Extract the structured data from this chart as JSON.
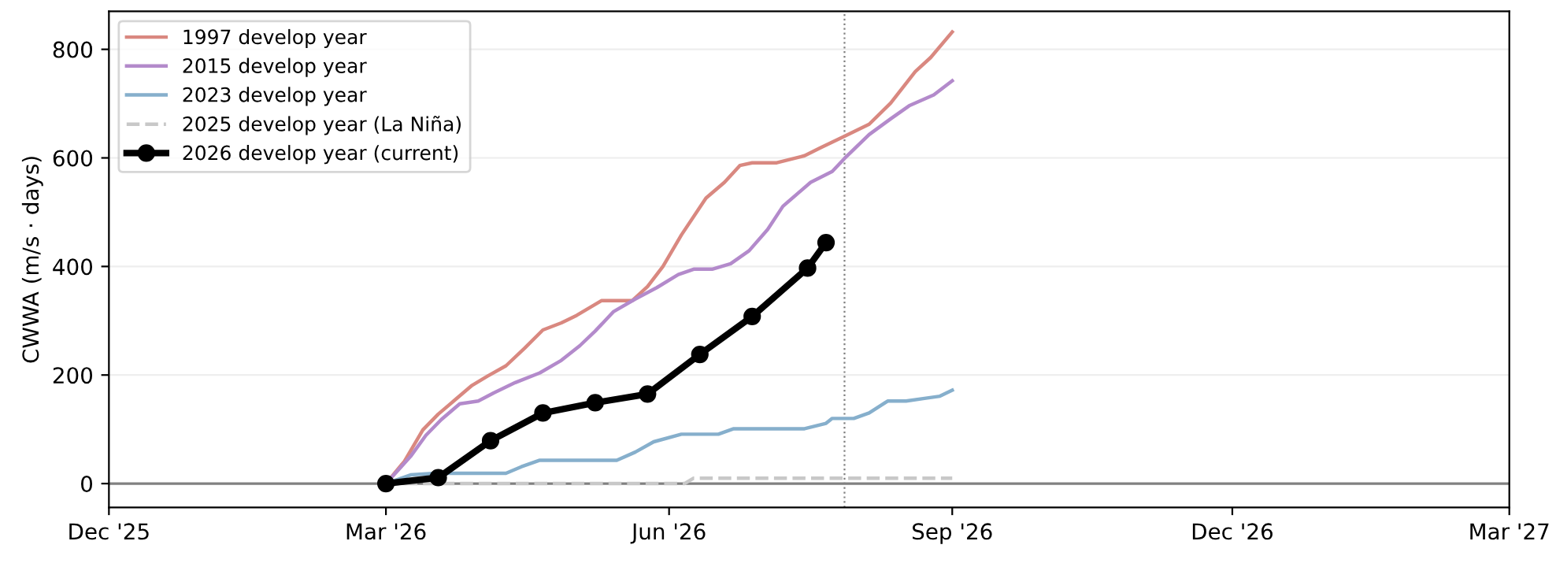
{
  "chart_data": {
    "type": "line",
    "ylabel": "CWWA (m/s · days)",
    "xlim": [
      "2025-12-01",
      "2027-03-01"
    ],
    "xticks": [
      {
        "value": "2025-12-01",
        "label": "Dec '25"
      },
      {
        "value": "2026-03-01",
        "label": "Mar '26"
      },
      {
        "value": "2026-06-01",
        "label": "Jun '26"
      },
      {
        "value": "2026-09-01",
        "label": "Sep '26"
      },
      {
        "value": "2026-12-01",
        "label": "Dec '26"
      },
      {
        "value": "2027-03-01",
        "label": "Mar '27"
      }
    ],
    "ylim": [
      -44,
      870
    ],
    "yticks": [
      0,
      200,
      400,
      600,
      800
    ],
    "grid": "y",
    "legend": "top left",
    "ref_lines": [
      {
        "axis": "y",
        "value": 0,
        "color": "#808080",
        "line_style": "solid"
      },
      {
        "axis": "x",
        "value": "2026-07-28",
        "color": "#808080",
        "line_style": "dotted"
      }
    ],
    "series": [
      {
        "name": "1997 develop year",
        "color": "#d98880",
        "x": [
          "2026-03-01",
          "2026-03-07",
          "2026-03-13",
          "2026-03-18",
          "2026-03-23",
          "2026-03-29",
          "2026-04-03",
          "2026-04-09",
          "2026-04-15",
          "2026-04-21",
          "2026-04-27",
          "2026-05-02",
          "2026-05-10",
          "2026-05-20",
          "2026-05-25",
          "2026-05-30",
          "2026-06-05",
          "2026-06-13",
          "2026-06-19",
          "2026-06-24",
          "2026-06-28",
          "2026-07-06",
          "2026-07-15",
          "2026-07-20",
          "2026-07-28",
          "2026-08-05",
          "2026-08-12",
          "2026-08-20",
          "2026-08-25",
          "2026-09-01"
        ],
        "values": [
          0,
          41,
          99,
          128,
          152,
          181,
          198,
          217,
          249,
          283,
          296,
          310,
          337,
          337,
          363,
          400,
          458,
          526,
          555,
          586,
          591,
          591,
          604,
          618,
          640,
          662,
          701,
          759,
          785,
          832
        ]
      },
      {
        "name": "2015 develop year",
        "color": "#b38acb",
        "x": [
          "2026-03-01",
          "2026-03-09",
          "2026-03-14",
          "2026-03-19",
          "2026-03-25",
          "2026-03-31",
          "2026-04-05",
          "2026-04-12",
          "2026-04-20",
          "2026-04-27",
          "2026-05-03",
          "2026-05-08",
          "2026-05-14",
          "2026-05-21",
          "2026-05-28",
          "2026-06-04",
          "2026-06-09",
          "2026-06-15",
          "2026-06-21",
          "2026-06-27",
          "2026-07-03",
          "2026-07-08",
          "2026-07-17",
          "2026-07-24",
          "2026-07-28",
          "2026-08-05",
          "2026-08-12",
          "2026-08-18",
          "2026-08-26",
          "2026-09-01"
        ],
        "values": [
          0,
          50,
          89,
          118,
          147,
          152,
          167,
          186,
          204,
          227,
          254,
          281,
          317,
          340,
          361,
          385,
          395,
          395,
          405,
          429,
          468,
          511,
          555,
          575,
          599,
          643,
          672,
          696,
          716,
          742
        ]
      },
      {
        "name": "2023 develop year",
        "color": "#86afcc",
        "x": [
          "2026-03-01",
          "2026-03-09",
          "2026-03-17",
          "2026-03-26",
          "2026-04-09",
          "2026-04-14",
          "2026-04-20",
          "2026-04-30",
          "2026-05-15",
          "2026-05-21",
          "2026-05-27",
          "2026-06-05",
          "2026-06-17",
          "2026-06-22",
          "2026-07-15",
          "2026-07-22",
          "2026-07-24",
          "2026-07-31",
          "2026-08-05",
          "2026-08-11",
          "2026-08-17",
          "2026-08-23",
          "2026-08-28",
          "2026-09-01"
        ],
        "values": [
          0,
          16,
          19,
          19,
          19,
          31,
          43,
          43,
          43,
          58,
          77,
          91,
          91,
          101,
          101,
          111,
          120,
          120,
          130,
          152,
          152,
          157,
          161,
          172
        ]
      },
      {
        "name": "2025 develop year (La Niña)",
        "color": "#c8c8c8",
        "line_style": "dashed",
        "x": [
          "2026-03-01",
          "2026-06-06",
          "2026-06-09",
          "2026-09-01"
        ],
        "values": [
          0,
          0,
          10,
          10
        ]
      },
      {
        "name": "2026 develop year (current)",
        "color": "#000000",
        "marker": "circle",
        "x": [
          "2026-03-01",
          "2026-03-18",
          "2026-04-04",
          "2026-04-21",
          "2026-05-08",
          "2026-05-25",
          "2026-06-11",
          "2026-06-28",
          "2026-07-16",
          "2026-07-22"
        ],
        "values": [
          0,
          11,
          79,
          130,
          149,
          165,
          238,
          308,
          397,
          444
        ]
      }
    ]
  }
}
